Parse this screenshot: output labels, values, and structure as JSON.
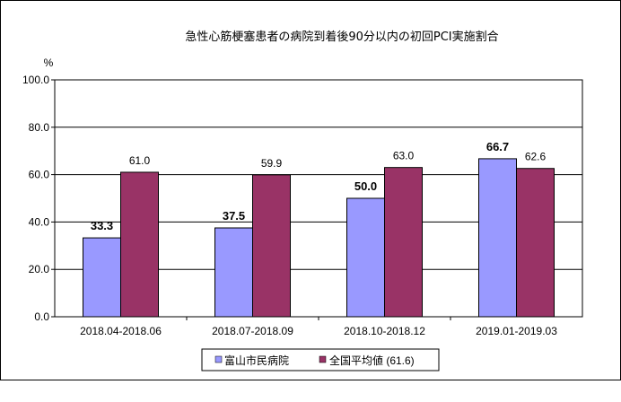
{
  "chart_data": {
    "type": "bar",
    "title": "急性心筋梗塞患者の病院到着後90分以内の初回PCI実施割合",
    "ylabel": "%",
    "ylim": [
      0,
      100
    ],
    "yticks": [
      "0.0",
      "20.0",
      "40.0",
      "60.0",
      "80.0",
      "100.0"
    ],
    "categories": [
      "2018.04-2018.06",
      "2018.07-2018.09",
      "2018.10-2018.12",
      "2019.01-2019.03"
    ],
    "series": [
      {
        "name": "富山市民病院",
        "values": [
          33.3,
          37.5,
          50.0,
          66.7
        ],
        "labels": [
          "33.3",
          "37.5",
          "50.0",
          "66.7"
        ],
        "color": "#9999ff",
        "label_bold": true
      },
      {
        "name": "全国平均値 (61.6)",
        "values": [
          61.0,
          59.9,
          63.0,
          62.6
        ],
        "labels": [
          "61.0",
          "59.9",
          "63.0",
          "62.6"
        ],
        "color": "#993366",
        "label_bold": false
      }
    ],
    "grid": true,
    "legend_position": "bottom"
  }
}
